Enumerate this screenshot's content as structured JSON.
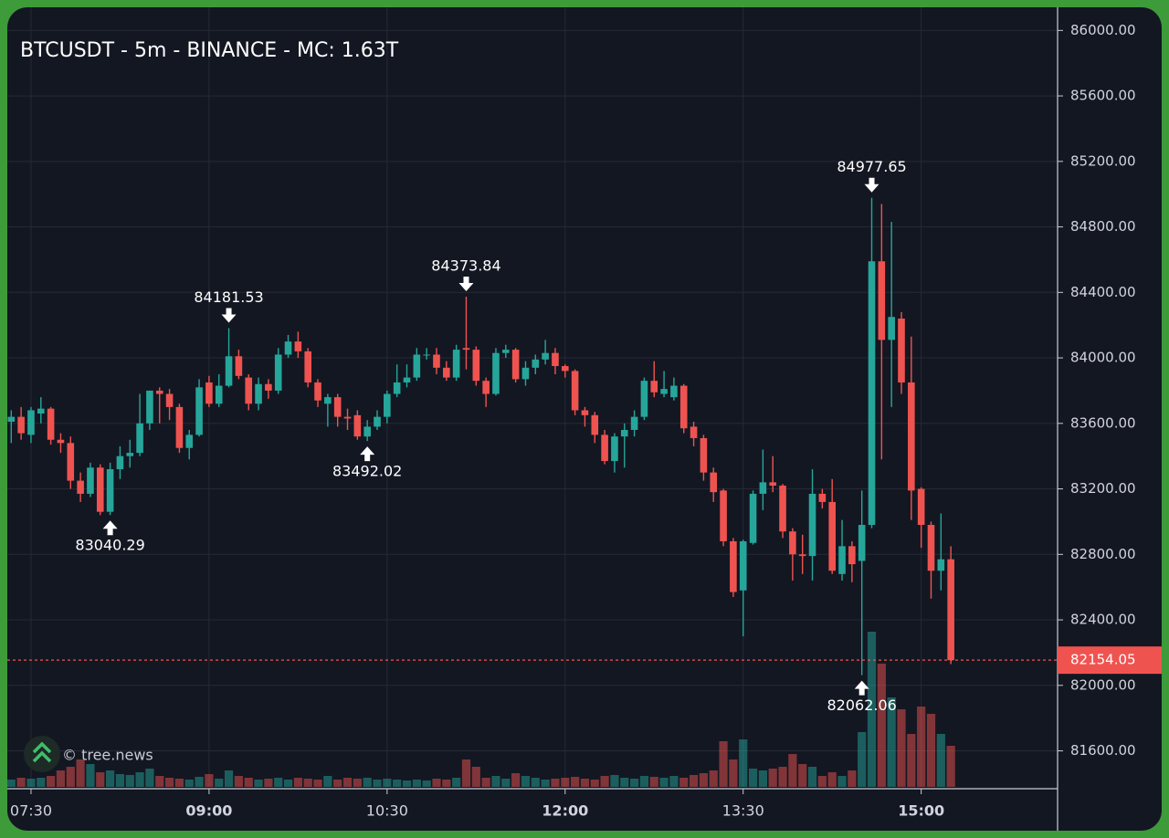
{
  "chart_data": {
    "type": "candlestick",
    "title": "BTCUSDT - 5m - BINANCE - MC: 1.63T",
    "watermark": "© tree.news",
    "categories": [
      "07:20",
      "07:25",
      "07:30",
      "07:35",
      "07:40",
      "07:45",
      "07:50",
      "07:55",
      "08:00",
      "08:05",
      "08:10",
      "08:15",
      "08:20",
      "08:25",
      "08:30",
      "08:35",
      "08:40",
      "08:45",
      "08:50",
      "08:55",
      "09:00",
      "09:05",
      "09:10",
      "09:15",
      "09:20",
      "09:25",
      "09:30",
      "09:35",
      "09:40",
      "09:45",
      "09:50",
      "09:55",
      "10:00",
      "10:05",
      "10:10",
      "10:15",
      "10:20",
      "10:25",
      "10:30",
      "10:35",
      "10:40",
      "10:45",
      "10:50",
      "10:55",
      "11:00",
      "11:05",
      "11:10",
      "11:15",
      "11:20",
      "11:25",
      "11:30",
      "11:35",
      "11:40",
      "11:45",
      "11:50",
      "11:55",
      "12:00",
      "12:05",
      "12:10",
      "12:15",
      "12:20",
      "12:25",
      "12:30",
      "12:35",
      "12:40",
      "12:45",
      "12:50",
      "12:55",
      "13:00",
      "13:05",
      "13:10",
      "13:15",
      "13:20",
      "13:25",
      "13:30",
      "13:35",
      "13:40",
      "13:45",
      "13:50",
      "13:55",
      "14:00",
      "14:05",
      "14:10",
      "14:15",
      "14:20",
      "14:25",
      "14:30",
      "14:35",
      "14:40",
      "14:45",
      "14:50",
      "14:55",
      "15:00",
      "15:05",
      "15:10",
      "15:15"
    ],
    "open": [
      83610,
      83640,
      83530,
      83660,
      83690,
      83500,
      83480,
      83250,
      83170,
      83330,
      83060,
      83320,
      83400,
      83420,
      83600,
      83800,
      83780,
      83700,
      83450,
      83530,
      83850,
      83720,
      83830,
      84010,
      83880,
      83720,
      83840,
      83800,
      84020,
      84100,
      84040,
      83850,
      83720,
      83760,
      83640,
      83650,
      83520,
      83580,
      83640,
      83780,
      83850,
      83880,
      84020,
      84020,
      83940,
      83880,
      84060,
      84050,
      83860,
      83780,
      84030,
      84050,
      83870,
      83940,
      83990,
      84030,
      83950,
      83920,
      83680,
      83650,
      83530,
      83370,
      83520,
      83560,
      83640,
      83860,
      83780,
      83760,
      83830,
      83580,
      83510,
      83300,
      83190,
      82880,
      82580,
      82870,
      83170,
      83240,
      83220,
      82940,
      82800,
      82790,
      83170,
      83120,
      82680,
      82850,
      82760,
      82980,
      84590,
      84110,
      84240,
      83850,
      83200,
      82980,
      82700,
      82770
    ],
    "high": [
      83680,
      83700,
      83700,
      83760,
      83700,
      83540,
      83520,
      83300,
      83360,
      83350,
      83360,
      83460,
      83500,
      83780,
      83800,
      83820,
      83810,
      83720,
      83560,
      83870,
      83890,
      83900,
      84181.53,
      84050,
      83900,
      83880,
      83870,
      84060,
      84140,
      84160,
      84060,
      83870,
      83780,
      83780,
      83690,
      83680,
      83620,
      83680,
      83800,
      83960,
      83960,
      84060,
      84060,
      84060,
      83980,
      84080,
      84373.84,
      84070,
      83880,
      84060,
      84080,
      84060,
      83980,
      84020,
      84110,
      84060,
      83960,
      83930,
      83700,
      83670,
      83560,
      83540,
      83600,
      83680,
      83880,
      83980,
      83920,
      83880,
      83840,
      83610,
      83530,
      83330,
      83200,
      82900,
      82890,
      83190,
      83440,
      83400,
      83230,
      82960,
      82920,
      83320,
      83200,
      83260,
      83010,
      82880,
      83190,
      84977.65,
      84940,
      84830,
      84280,
      84130,
      83210,
      83000,
      83050,
      82850
    ],
    "low": [
      83480,
      83500,
      83480,
      83600,
      83470,
      83420,
      83200,
      83120,
      83150,
      83040,
      83040.29,
      83260,
      83330,
      83400,
      83560,
      83600,
      83620,
      83420,
      83380,
      83520,
      83700,
      83700,
      83820,
      83870,
      83680,
      83680,
      83750,
      83780,
      84000,
      84000,
      83820,
      83700,
      83580,
      83580,
      83560,
      83500,
      83492.02,
      83560,
      83600,
      83760,
      83820,
      83860,
      83990,
      83900,
      83860,
      83860,
      83930,
      83830,
      83700,
      83770,
      84000,
      83850,
      83830,
      83900,
      83960,
      83900,
      83880,
      83650,
      83580,
      83480,
      83350,
      83300,
      83330,
      83520,
      83620,
      83760,
      83760,
      83740,
      83540,
      83460,
      83250,
      83120,
      82850,
      82540,
      82300,
      82860,
      83070,
      83180,
      82900,
      82640,
      82680,
      82640,
      83080,
      82680,
      82640,
      82630,
      82062.06,
      82960,
      83380,
      83700,
      83780,
      83010,
      82840,
      82530,
      82580,
      82130
    ],
    "close": [
      83640,
      83540,
      83680,
      83690,
      83500,
      83480,
      83250,
      83170,
      83330,
      83060,
      83320,
      83400,
      83420,
      83600,
      83800,
      83780,
      83700,
      83450,
      83530,
      83820,
      83720,
      83830,
      84010,
      83890,
      83720,
      83840,
      83800,
      84020,
      84100,
      84040,
      83850,
      83740,
      83760,
      83640,
      83630,
      83520,
      83580,
      83640,
      83780,
      83850,
      83880,
      84020,
      84020,
      83940,
      83880,
      84050,
      84050,
      83860,
      83780,
      84030,
      84050,
      83870,
      83940,
      83990,
      84030,
      83950,
      83920,
      83680,
      83650,
      83530,
      83370,
      83520,
      83560,
      83640,
      83860,
      83790,
      83810,
      83830,
      83570,
      83510,
      83300,
      83180,
      82880,
      82570,
      82880,
      83170,
      83240,
      83220,
      82940,
      82800,
      82790,
      83170,
      83120,
      82700,
      82850,
      82740,
      82980,
      84590,
      84110,
      84250,
      83850,
      83190,
      82980,
      82700,
      82770,
      82154.05
    ],
    "volume": [
      8,
      10,
      9,
      10,
      12,
      18,
      22,
      30,
      25,
      16,
      18,
      14,
      13,
      16,
      20,
      12,
      10,
      9,
      8,
      11,
      14,
      9,
      18,
      12,
      10,
      8,
      9,
      10,
      8,
      10,
      9,
      8,
      12,
      8,
      10,
      9,
      10,
      8,
      9,
      8,
      7,
      8,
      7,
      9,
      8,
      10,
      30,
      22,
      10,
      12,
      9,
      15,
      12,
      10,
      8,
      9,
      10,
      11,
      9,
      8,
      12,
      13,
      10,
      9,
      12,
      11,
      10,
      12,
      10,
      13,
      15,
      18,
      50,
      30,
      52,
      20,
      18,
      20,
      22,
      36,
      25,
      22,
      12,
      16,
      12,
      18,
      60,
      170,
      135,
      98,
      85,
      58,
      88,
      80,
      58,
      45
    ],
    "marked_highs": [
      22,
      46,
      87
    ],
    "marked_lows": [
      10,
      36,
      86
    ],
    "up_color": "#26a69a",
    "down_color": "#ef5350",
    "ylim": [
      81380,
      86130
    ],
    "yticks": [
      {
        "value": 81600,
        "label": "81600.00"
      },
      {
        "value": 82000,
        "label": "82000.00"
      },
      {
        "value": 82400,
        "label": "82400.00"
      },
      {
        "value": 82800,
        "label": "82800.00"
      },
      {
        "value": 83200,
        "label": "83200.00"
      },
      {
        "value": 83600,
        "label": "83600.00"
      },
      {
        "value": 84000,
        "label": "84000.00"
      },
      {
        "value": 84400,
        "label": "84400.00"
      },
      {
        "value": 84800,
        "label": "84800.00"
      },
      {
        "value": 85200,
        "label": "85200.00"
      },
      {
        "value": 85600,
        "label": "85600.00"
      },
      {
        "value": 86000,
        "label": "86000.00"
      }
    ],
    "xticks": [
      "07:30",
      "09:00",
      "10:30",
      "12:00",
      "13:30",
      "15:00"
    ],
    "grid": true
  }
}
